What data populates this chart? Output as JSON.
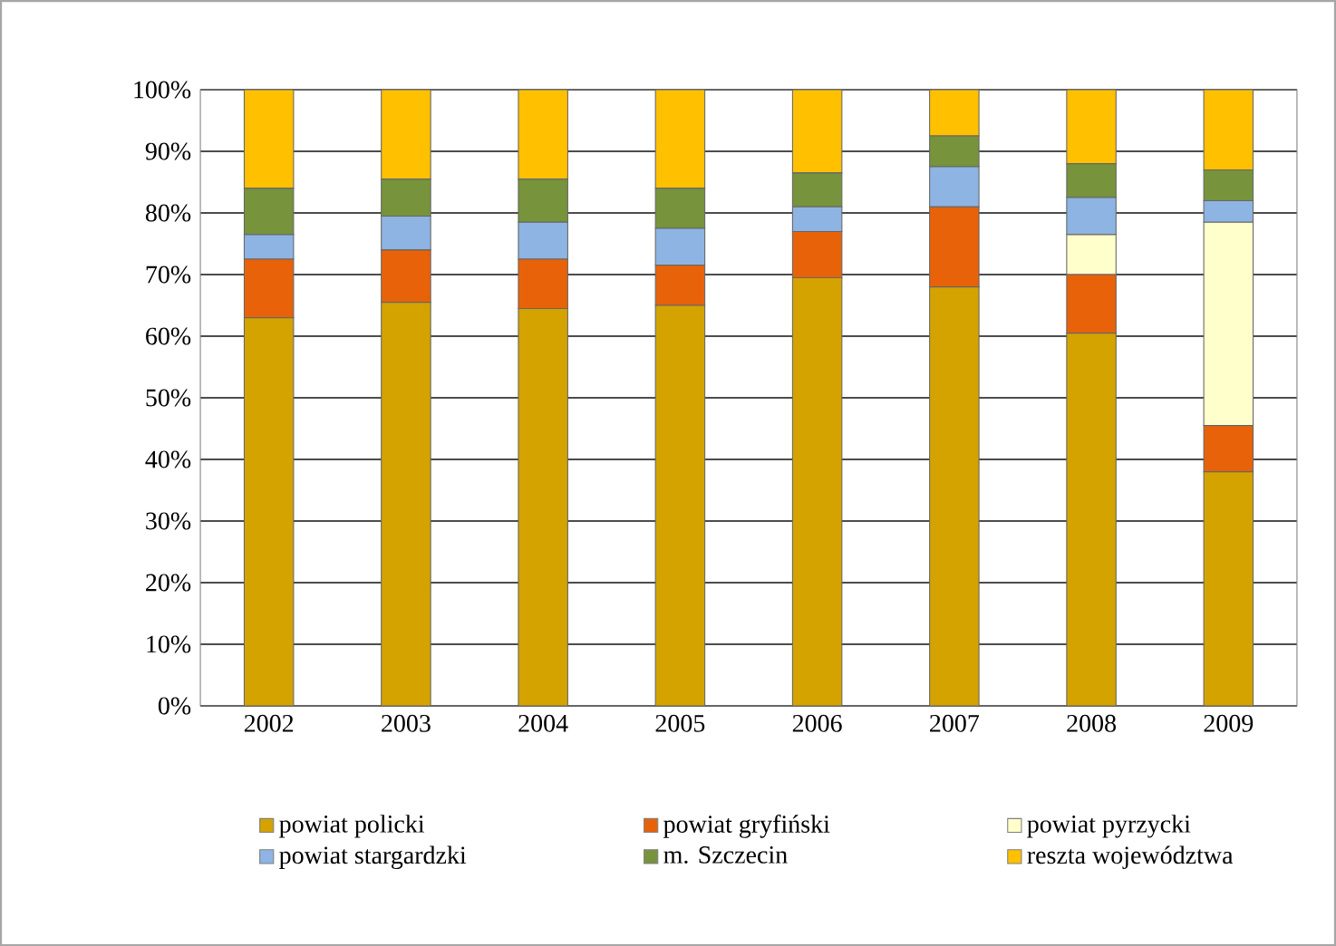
{
  "chart_data": {
    "type": "bar",
    "stacked": true,
    "categories": [
      "2002",
      "2003",
      "2004",
      "2005",
      "2006",
      "2007",
      "2008",
      "2009"
    ],
    "series": [
      {
        "name": "powiat policki",
        "color": "#d4a300",
        "values": [
          63,
          65.5,
          64.5,
          65,
          69.5,
          68,
          60.5,
          38
        ]
      },
      {
        "name": "powiat gryfiński",
        "color": "#e8620a",
        "values": [
          9.5,
          8.5,
          8,
          6.5,
          7.5,
          13,
          9.5,
          7.5
        ]
      },
      {
        "name": "powiat pyrzycki",
        "color": "#ffffcc",
        "values": [
          0,
          0,
          0,
          0,
          0,
          0,
          6.5,
          33
        ]
      },
      {
        "name": "powiat stargardzki",
        "color": "#8db4e2",
        "values": [
          4,
          5.5,
          6,
          6,
          4,
          6.5,
          6,
          3.5
        ]
      },
      {
        "name": "m. Szczecin",
        "color": "#77933c",
        "values": [
          7.5,
          6,
          7,
          6.5,
          5.5,
          5,
          5.5,
          5
        ]
      },
      {
        "name": "reszta województwa",
        "color": "#ffc000",
        "values": [
          16,
          14.5,
          14.5,
          16,
          13.5,
          7.5,
          12,
          13
        ]
      }
    ],
    "ylim": [
      0,
      100
    ],
    "yticks": [
      {
        "value": 0,
        "label": "0%"
      },
      {
        "value": 10,
        "label": "10%"
      },
      {
        "value": 20,
        "label": "20%"
      },
      {
        "value": 30,
        "label": "30%"
      },
      {
        "value": 40,
        "label": "40%"
      },
      {
        "value": 50,
        "label": "50%"
      },
      {
        "value": 60,
        "label": "60%"
      },
      {
        "value": 70,
        "label": "70%"
      },
      {
        "value": 80,
        "label": "80%"
      },
      {
        "value": 90,
        "label": "90%"
      },
      {
        "value": 100,
        "label": "100%"
      }
    ],
    "grid": "y",
    "legend": "bottom"
  }
}
